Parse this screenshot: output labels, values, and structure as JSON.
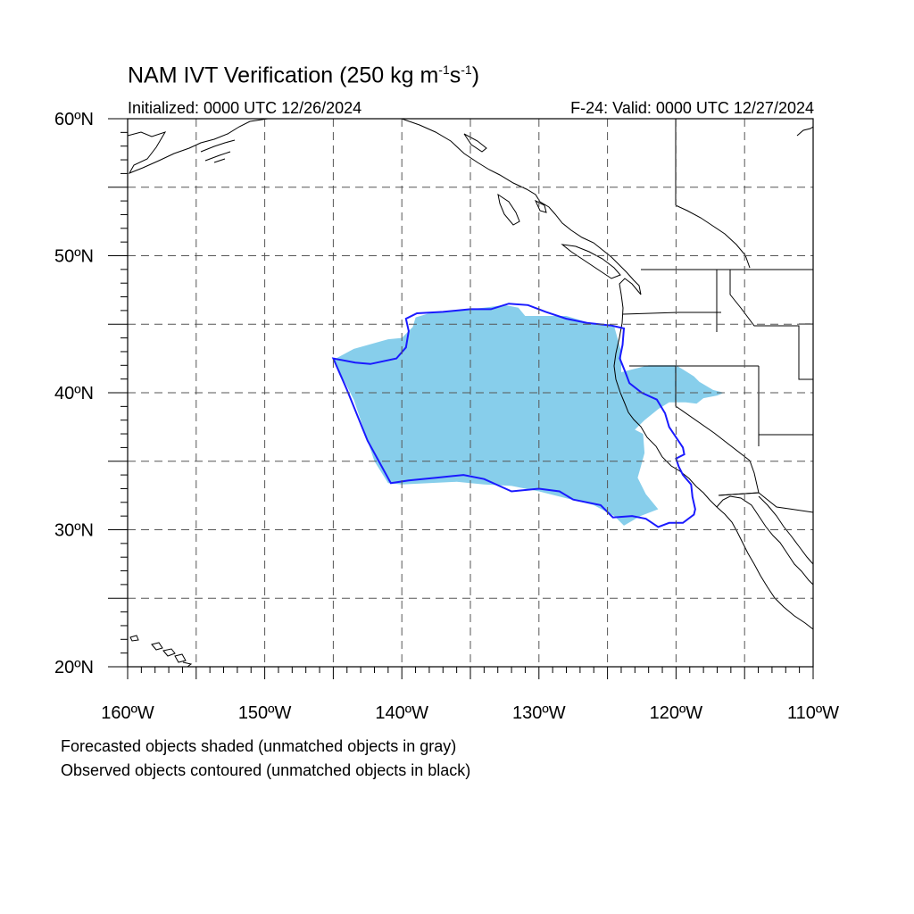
{
  "title": {
    "main": "NAM IVT Verification (250 kg m",
    "sup1": "-1",
    "mid": "s",
    "sup2": "-1",
    "end": ")"
  },
  "initialized": "Initialized: 0000 UTC 12/26/2024",
  "valid": "F-24: Valid: 0000 UTC 12/27/2024",
  "notes": {
    "forecast": "Forecasted objects shaded (unmatched objects in gray)",
    "observed": "Observed objects contoured (unmatched objects in black)"
  },
  "axes": {
    "lat_labels": [
      "60ºN",
      "50ºN",
      "40ºN",
      "30ºN",
      "20ºN"
    ],
    "lat_values": [
      60,
      50,
      40,
      30,
      20
    ],
    "lon_labels": [
      "160ºW",
      "150ºW",
      "140ºW",
      "130ºW",
      "120ºW",
      "110ºW"
    ],
    "lon_values": [
      -160,
      -150,
      -140,
      -130,
      -120,
      -110
    ],
    "lat_range": [
      20,
      60
    ],
    "lon_range": [
      -160,
      -110
    ],
    "grid_step_deg": 5
  },
  "colors": {
    "forecast_fill": "#87ceeb",
    "observed_contour": "#1a1aff",
    "coastline": "#000000",
    "grid": "#555555"
  },
  "forecast_object": [
    [
      -145,
      42.4
    ],
    [
      -143.5,
      43.2
    ],
    [
      -141,
      43.9
    ],
    [
      -140,
      44
    ],
    [
      -139.2,
      44.8
    ],
    [
      -139,
      45.5
    ],
    [
      -138,
      45.8
    ],
    [
      -136,
      46
    ],
    [
      -134,
      46.2
    ],
    [
      -132.5,
      46.4
    ],
    [
      -131.5,
      46.2
    ],
    [
      -131,
      45.6
    ],
    [
      -130,
      45.6
    ],
    [
      -128,
      45.6
    ],
    [
      -126,
      45
    ],
    [
      -124.5,
      44.8
    ],
    [
      -124,
      43
    ],
    [
      -124,
      41.5
    ],
    [
      -122,
      42
    ],
    [
      -120.5,
      42
    ],
    [
      -120,
      42
    ],
    [
      -119.5,
      41.7
    ],
    [
      -118.7,
      41.2
    ],
    [
      -118.3,
      40.8
    ],
    [
      -117.3,
      40.2
    ],
    [
      -116.5,
      40
    ],
    [
      -117,
      39.8
    ],
    [
      -118,
      39.6
    ],
    [
      -118.5,
      39.2
    ],
    [
      -119.3,
      39.3
    ],
    [
      -120.5,
      39.3
    ],
    [
      -121.3,
      38.8
    ],
    [
      -122.3,
      38
    ],
    [
      -123,
      37.3
    ],
    [
      -122.4,
      37
    ],
    [
      -122.3,
      35.6
    ],
    [
      -122.6,
      34.5
    ],
    [
      -122.8,
      33.8
    ],
    [
      -122.2,
      32.6
    ],
    [
      -121.3,
      31.5
    ],
    [
      -122.6,
      31
    ],
    [
      -123.8,
      30.3
    ],
    [
      -124.5,
      31
    ],
    [
      -126,
      31.8
    ],
    [
      -128,
      32.3
    ],
    [
      -130,
      32.8
    ],
    [
      -132,
      33.2
    ],
    [
      -134,
      33.3
    ],
    [
      -136,
      33.5
    ],
    [
      -138,
      33.4
    ],
    [
      -140,
      33.3
    ],
    [
      -141,
      33.4
    ],
    [
      -142,
      35
    ],
    [
      -143.5,
      39.5
    ],
    [
      -145,
      42.4
    ]
  ],
  "observed_object": [
    [
      -145,
      42.5
    ],
    [
      -143.4,
      42.2
    ],
    [
      -142.3,
      42.1
    ],
    [
      -140.4,
      42.5
    ],
    [
      -139.7,
      43.3
    ],
    [
      -139.5,
      44.5
    ],
    [
      -139.7,
      45.4
    ],
    [
      -138.9,
      45.8
    ],
    [
      -137,
      45.9
    ],
    [
      -135,
      46.1
    ],
    [
      -133.5,
      46.1
    ],
    [
      -132.2,
      46.5
    ],
    [
      -130.8,
      46.4
    ],
    [
      -129.5,
      45.9
    ],
    [
      -128,
      45.4
    ],
    [
      -126.5,
      45.1
    ],
    [
      -124.7,
      44.9
    ],
    [
      -123.8,
      44.7
    ],
    [
      -123.9,
      43.5
    ],
    [
      -124.1,
      42.5
    ],
    [
      -123.7,
      41.5
    ],
    [
      -123.4,
      40.7
    ],
    [
      -122.5,
      40
    ],
    [
      -121.4,
      39.5
    ],
    [
      -120.8,
      38.5
    ],
    [
      -120.5,
      37.5
    ],
    [
      -119.5,
      36
    ],
    [
      -119.4,
      35.5
    ],
    [
      -120,
      35.2
    ],
    [
      -119.8,
      34.6
    ],
    [
      -119.5,
      34
    ],
    [
      -118.9,
      33.3
    ],
    [
      -118.8,
      32.4
    ],
    [
      -118.6,
      31.5
    ],
    [
      -118.7,
      31.1
    ],
    [
      -119.5,
      30.5
    ],
    [
      -120.5,
      30.5
    ],
    [
      -121.3,
      30.2
    ],
    [
      -122.2,
      30.8
    ],
    [
      -123.2,
      31
    ],
    [
      -124.6,
      30.9
    ],
    [
      -125.5,
      31.8
    ],
    [
      -127.5,
      32.2
    ],
    [
      -128.5,
      32.8
    ],
    [
      -130,
      33
    ],
    [
      -132,
      32.8
    ],
    [
      -134,
      33.7
    ],
    [
      -135.5,
      34
    ],
    [
      -137.5,
      33.8
    ],
    [
      -139.5,
      33.6
    ],
    [
      -140.8,
      33.4
    ],
    [
      -142.5,
      36.5
    ],
    [
      -144,
      40.2
    ],
    [
      -145,
      42.5
    ]
  ]
}
